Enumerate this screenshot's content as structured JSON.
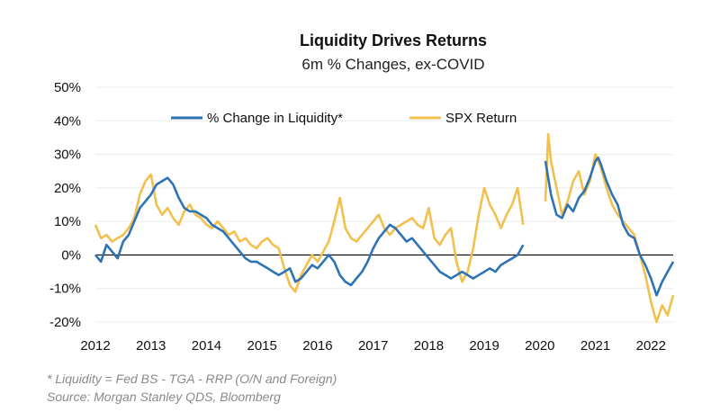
{
  "chart_data": {
    "type": "line",
    "title": "Liquidity Drives Returns",
    "subtitle": "6m % Changes, ex-COVID",
    "xlabel": "",
    "ylabel": "",
    "xlim": [
      2012,
      2022.4
    ],
    "ylim": [
      -20,
      50
    ],
    "y_ticks": [
      "50%",
      "40%",
      "30%",
      "20%",
      "10%",
      "0%",
      "-10%",
      "-20%"
    ],
    "y_tick_values": [
      50,
      40,
      30,
      20,
      10,
      0,
      -10,
      -20
    ],
    "x_ticks": [
      "2012",
      "2013",
      "2014",
      "2015",
      "2016",
      "2017",
      "2018",
      "2019",
      "2020",
      "2021",
      "2022"
    ],
    "x_tick_values": [
      2012,
      2013,
      2014,
      2015,
      2016,
      2017,
      2018,
      2019,
      2020,
      2021,
      2022
    ],
    "grid": true,
    "legend_position": "top",
    "series": [
      {
        "name": "% Change in Liquidity*",
        "color": "#2f73b5",
        "segments": [
          [
            [
              2012.0,
              0
            ],
            [
              2012.1,
              -2
            ],
            [
              2012.2,
              3
            ],
            [
              2012.3,
              1
            ],
            [
              2012.4,
              -1
            ],
            [
              2012.5,
              4
            ],
            [
              2012.6,
              6
            ],
            [
              2012.7,
              10
            ],
            [
              2012.8,
              14
            ],
            [
              2012.9,
              16
            ],
            [
              2013.0,
              18
            ],
            [
              2013.1,
              21
            ],
            [
              2013.2,
              22
            ],
            [
              2013.3,
              23
            ],
            [
              2013.4,
              21
            ],
            [
              2013.5,
              17
            ],
            [
              2013.6,
              14
            ],
            [
              2013.7,
              13
            ],
            [
              2013.8,
              13
            ],
            [
              2013.9,
              12
            ],
            [
              2014.0,
              11
            ],
            [
              2014.1,
              9
            ],
            [
              2014.2,
              8
            ],
            [
              2014.3,
              7
            ],
            [
              2014.4,
              5
            ],
            [
              2014.5,
              3
            ],
            [
              2014.6,
              1
            ],
            [
              2014.7,
              -1
            ],
            [
              2014.8,
              -2
            ],
            [
              2014.9,
              -2
            ],
            [
              2015.0,
              -3
            ],
            [
              2015.1,
              -4
            ],
            [
              2015.2,
              -5
            ],
            [
              2015.3,
              -6
            ],
            [
              2015.4,
              -5
            ],
            [
              2015.5,
              -4
            ],
            [
              2015.6,
              -8
            ],
            [
              2015.7,
              -7
            ],
            [
              2015.8,
              -5
            ],
            [
              2015.9,
              -3
            ],
            [
              2016.0,
              -4
            ],
            [
              2016.1,
              -2
            ],
            [
              2016.2,
              0
            ],
            [
              2016.3,
              -2
            ],
            [
              2016.4,
              -6
            ],
            [
              2016.5,
              -8
            ],
            [
              2016.6,
              -9
            ],
            [
              2016.7,
              -7
            ],
            [
              2016.8,
              -5
            ],
            [
              2016.9,
              -2
            ],
            [
              2017.0,
              2
            ],
            [
              2017.1,
              5
            ],
            [
              2017.2,
              7
            ],
            [
              2017.3,
              9
            ],
            [
              2017.4,
              8
            ],
            [
              2017.5,
              6
            ],
            [
              2017.6,
              4
            ],
            [
              2017.7,
              5
            ],
            [
              2017.8,
              3
            ],
            [
              2017.9,
              1
            ],
            [
              2018.0,
              -1
            ],
            [
              2018.1,
              -3
            ],
            [
              2018.2,
              -5
            ],
            [
              2018.3,
              -6
            ],
            [
              2018.4,
              -7
            ],
            [
              2018.5,
              -6
            ],
            [
              2018.6,
              -5
            ],
            [
              2018.7,
              -6
            ],
            [
              2018.8,
              -7
            ],
            [
              2018.9,
              -6
            ],
            [
              2019.0,
              -5
            ],
            [
              2019.1,
              -4
            ],
            [
              2019.2,
              -5
            ],
            [
              2019.3,
              -3
            ],
            [
              2019.4,
              -2
            ],
            [
              2019.5,
              -1
            ],
            [
              2019.6,
              0
            ],
            [
              2019.7,
              3
            ]
          ],
          [
            [
              2020.1,
              28
            ],
            [
              2020.2,
              18
            ],
            [
              2020.3,
              12
            ],
            [
              2020.4,
              11
            ],
            [
              2020.5,
              15
            ],
            [
              2020.6,
              13
            ],
            [
              2020.7,
              17
            ],
            [
              2020.8,
              19
            ],
            [
              2020.9,
              23
            ],
            [
              2021.0,
              28
            ],
            [
              2021.05,
              29
            ],
            [
              2021.1,
              27
            ],
            [
              2021.2,
              22
            ],
            [
              2021.3,
              18
            ],
            [
              2021.4,
              15
            ],
            [
              2021.5,
              9
            ],
            [
              2021.6,
              6
            ],
            [
              2021.7,
              5
            ],
            [
              2021.8,
              0
            ],
            [
              2021.9,
              -3
            ],
            [
              2022.0,
              -7
            ],
            [
              2022.1,
              -12
            ],
            [
              2022.2,
              -8
            ],
            [
              2022.3,
              -5
            ],
            [
              2022.4,
              -2
            ]
          ]
        ]
      },
      {
        "name": "SPX Return",
        "color": "#f2c04d",
        "segments": [
          [
            [
              2012.0,
              9
            ],
            [
              2012.1,
              5
            ],
            [
              2012.2,
              6
            ],
            [
              2012.3,
              4
            ],
            [
              2012.4,
              5
            ],
            [
              2012.5,
              6
            ],
            [
              2012.6,
              8
            ],
            [
              2012.7,
              11
            ],
            [
              2012.8,
              18
            ],
            [
              2012.9,
              22
            ],
            [
              2013.0,
              24
            ],
            [
              2013.1,
              15
            ],
            [
              2013.2,
              12
            ],
            [
              2013.3,
              14
            ],
            [
              2013.4,
              11
            ],
            [
              2013.5,
              9
            ],
            [
              2013.6,
              13
            ],
            [
              2013.7,
              15
            ],
            [
              2013.8,
              12
            ],
            [
              2013.9,
              11
            ],
            [
              2014.0,
              9
            ],
            [
              2014.1,
              8
            ],
            [
              2014.2,
              10
            ],
            [
              2014.3,
              8
            ],
            [
              2014.4,
              6
            ],
            [
              2014.5,
              7
            ],
            [
              2014.6,
              4
            ],
            [
              2014.7,
              5
            ],
            [
              2014.8,
              3
            ],
            [
              2014.9,
              2
            ],
            [
              2015.0,
              4
            ],
            [
              2015.1,
              5
            ],
            [
              2015.2,
              3
            ],
            [
              2015.3,
              2
            ],
            [
              2015.4,
              -4
            ],
            [
              2015.5,
              -9
            ],
            [
              2015.6,
              -11
            ],
            [
              2015.7,
              -6
            ],
            [
              2015.8,
              -3
            ],
            [
              2015.9,
              0
            ],
            [
              2016.0,
              -2
            ],
            [
              2016.1,
              1
            ],
            [
              2016.2,
              4
            ],
            [
              2016.3,
              10
            ],
            [
              2016.4,
              17
            ],
            [
              2016.5,
              8
            ],
            [
              2016.6,
              5
            ],
            [
              2016.7,
              4
            ],
            [
              2016.8,
              6
            ],
            [
              2016.9,
              8
            ],
            [
              2017.0,
              10
            ],
            [
              2017.1,
              12
            ],
            [
              2017.2,
              8
            ],
            [
              2017.3,
              6
            ],
            [
              2017.4,
              8
            ],
            [
              2017.5,
              9
            ],
            [
              2017.6,
              10
            ],
            [
              2017.7,
              11
            ],
            [
              2017.8,
              9
            ],
            [
              2017.9,
              8
            ],
            [
              2018.0,
              14
            ],
            [
              2018.1,
              5
            ],
            [
              2018.2,
              3
            ],
            [
              2018.3,
              6
            ],
            [
              2018.4,
              8
            ],
            [
              2018.5,
              -2
            ],
            [
              2018.6,
              -8
            ],
            [
              2018.7,
              -5
            ],
            [
              2018.8,
              2
            ],
            [
              2018.9,
              12
            ],
            [
              2019.0,
              20
            ],
            [
              2019.1,
              15
            ],
            [
              2019.2,
              12
            ],
            [
              2019.3,
              8
            ],
            [
              2019.4,
              12
            ],
            [
              2019.5,
              15
            ],
            [
              2019.6,
              20
            ],
            [
              2019.7,
              9
            ]
          ],
          [
            [
              2020.1,
              16
            ],
            [
              2020.15,
              36
            ],
            [
              2020.2,
              28
            ],
            [
              2020.3,
              20
            ],
            [
              2020.4,
              12
            ],
            [
              2020.5,
              16
            ],
            [
              2020.6,
              22
            ],
            [
              2020.7,
              25
            ],
            [
              2020.8,
              18
            ],
            [
              2020.9,
              22
            ],
            [
              2021.0,
              30
            ],
            [
              2021.1,
              26
            ],
            [
              2021.2,
              20
            ],
            [
              2021.3,
              15
            ],
            [
              2021.4,
              12
            ],
            [
              2021.5,
              10
            ],
            [
              2021.6,
              8
            ],
            [
              2021.7,
              6
            ],
            [
              2021.8,
              0
            ],
            [
              2021.9,
              -6
            ],
            [
              2022.0,
              -14
            ],
            [
              2022.1,
              -20
            ],
            [
              2022.2,
              -15
            ],
            [
              2022.3,
              -18
            ],
            [
              2022.4,
              -12
            ]
          ]
        ]
      }
    ]
  },
  "footnotes": {
    "definition": "* Liquidity = Fed BS - TGA - RRP (O/N and Foreign)",
    "source": "Source: Morgan Stanley QDS, Bloomberg"
  }
}
